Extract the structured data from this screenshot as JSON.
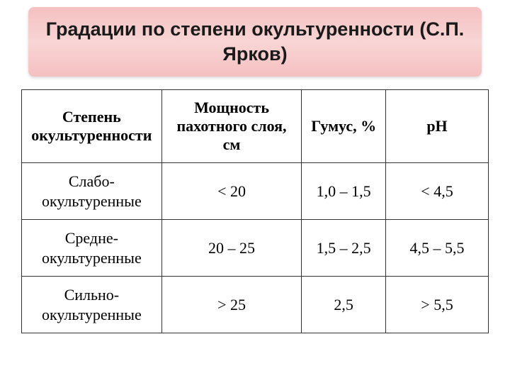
{
  "title": "Градации по степени окультуренности (С.П. Ярков)",
  "title_style": {
    "background_gradient": [
      "#f5c0c0",
      "#f8d5d5",
      "#f5c0c0"
    ],
    "font_family": "Arial",
    "font_size_pt": 20,
    "font_weight": "bold",
    "color": "#1a1a1a",
    "border_radius": 8
  },
  "table": {
    "columns": [
      {
        "label": "Степень окультуренности",
        "width_pct": 30
      },
      {
        "label": "Мощность пахотного слоя, см",
        "width_pct": 30
      },
      {
        "label": "Гумус, %",
        "width_pct": 18
      },
      {
        "label": "рН",
        "width_pct": 22
      }
    ],
    "rows": [
      [
        "Слабо-окультуренные",
        "< 20",
        "1,0 – 1,5",
        "< 4,5"
      ],
      [
        "Средне-окультуренные",
        "20 – 25",
        "1,5 – 2,5",
        "4,5 – 5,5"
      ],
      [
        "Сильно-окультуренные",
        "> 25",
        "2,5",
        "> 5,5"
      ]
    ],
    "style": {
      "border_color": "#333333",
      "header_font_weight": "bold",
      "cell_font_size_pt": 16,
      "font_family": "Times New Roman",
      "text_color": "#000000",
      "background_color": "#ffffff"
    }
  }
}
